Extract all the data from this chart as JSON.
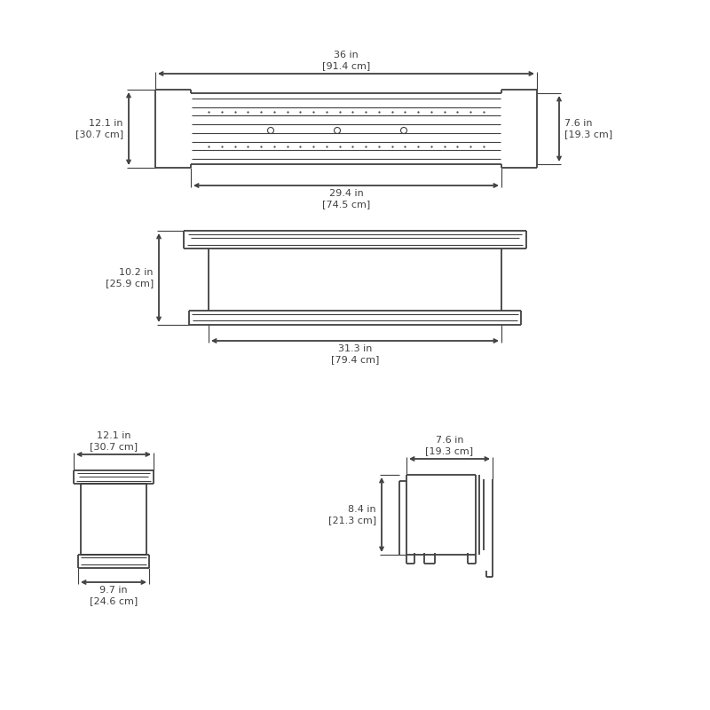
{
  "bg_color": "#ffffff",
  "line_color": "#404040",
  "line_width": 1.3,
  "thin_line": 0.8,
  "text_color": "#404040",
  "font_size": 8.0,
  "view1": {
    "label_36in": "36 in\n[91.4 cm]",
    "label_29in": "29.4 in\n[74.5 cm]",
    "label_121in": "12.1 in\n[30.7 cm]",
    "label_76in": "7.6 in\n[19.3 cm]"
  },
  "view2": {
    "label_102in": "10.2 in\n[25.9 cm]",
    "label_313in": "31.3 in\n[79.4 cm]"
  },
  "view3_left": {
    "label_121in": "12.1 in\n[30.7 cm]",
    "label_97in": "9.7 in\n[24.6 cm]"
  },
  "view3_right": {
    "label_76in": "7.6 in\n[19.3 cm]",
    "label_84in": "8.4 in\n[21.3 cm]"
  }
}
